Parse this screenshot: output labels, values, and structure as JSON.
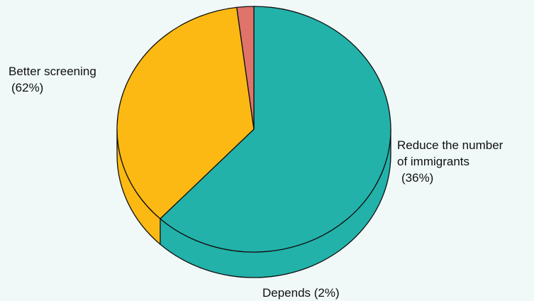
{
  "chart_data": {
    "type": "pie",
    "style": "3d",
    "categories": [
      "Better screening",
      "Reduce the number of immigrants",
      "Depends"
    ],
    "values": [
      62,
      36,
      2
    ],
    "colors": [
      "#22B2AA",
      "#FDB913",
      "#E0736A"
    ],
    "labels": [
      [
        "Better screening",
        "(62%)"
      ],
      [
        "Reduce the number",
        "of immigrants",
        "(36%)"
      ],
      [
        "Depends (2%)"
      ]
    ],
    "background": "#F0F8F8",
    "edge_color": "#111111"
  }
}
